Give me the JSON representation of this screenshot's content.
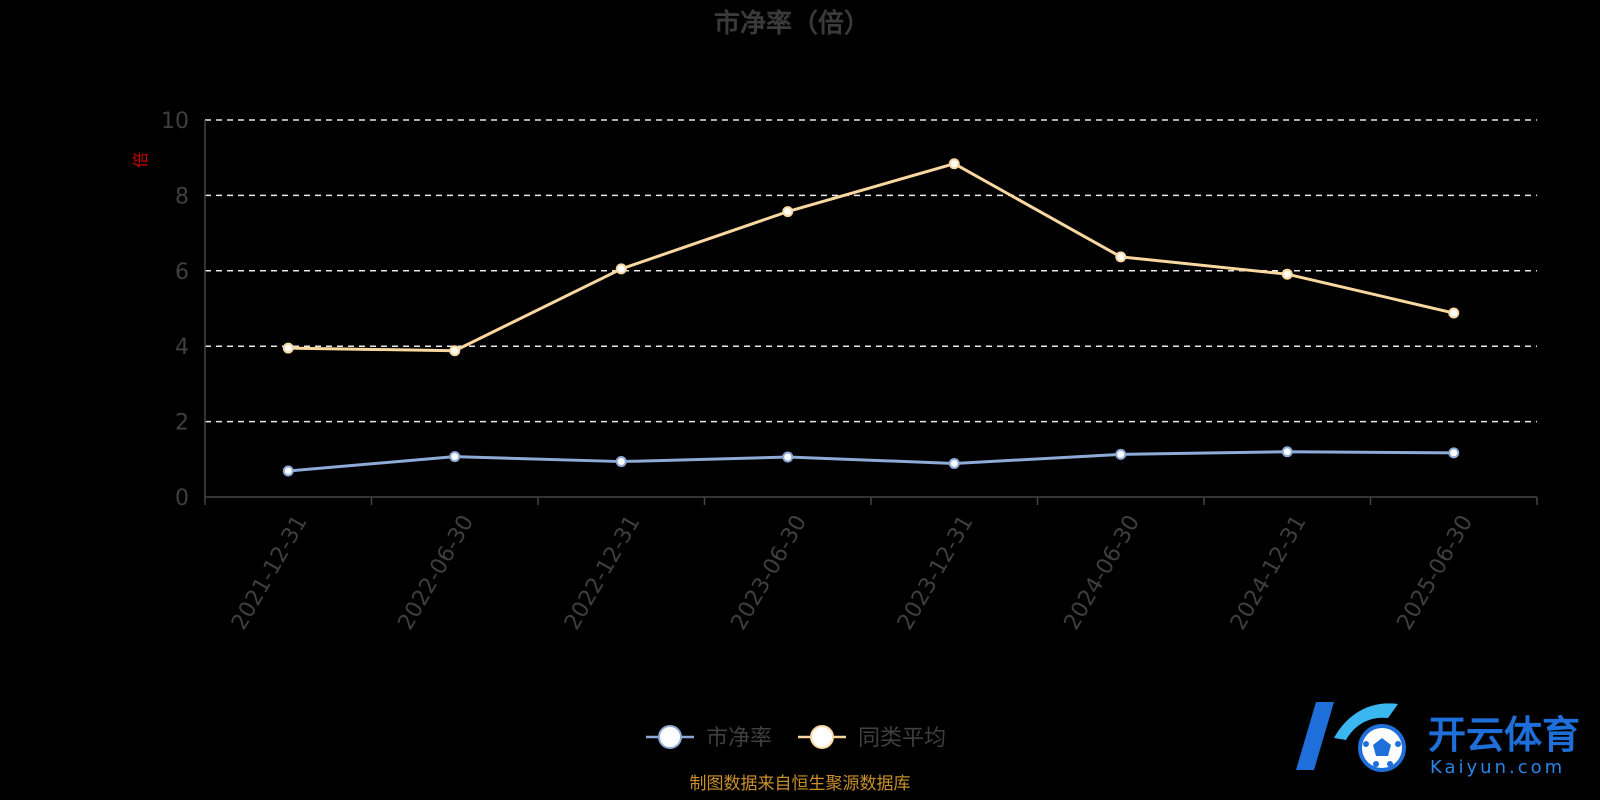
{
  "chart_data": {
    "type": "line",
    "title": "市净率（倍）",
    "ylabel": "倍",
    "xlabel": "",
    "ylim": [
      0,
      10
    ],
    "yticks": [
      0,
      2,
      4,
      6,
      8,
      10
    ],
    "grid": true,
    "legend_position": "bottom-center",
    "categories": [
      "2021-12-31",
      "2022-06-30",
      "2022-12-31",
      "2023-06-30",
      "2023-12-31",
      "2024-06-30",
      "2024-12-31",
      "2025-06-30"
    ],
    "series": [
      {
        "name": "市净率",
        "color": "#8eaad6",
        "values": [
          0.69,
          1.07,
          0.94,
          1.06,
          0.89,
          1.13,
          1.2,
          1.17
        ]
      },
      {
        "name": "同类平均",
        "color": "#f8d8a0",
        "values": [
          3.95,
          3.88,
          6.05,
          7.57,
          8.84,
          6.37,
          5.91,
          4.88
        ]
      }
    ]
  },
  "source_note": "制图数据来自恒生聚源数据库",
  "watermark": {
    "name_cn": "开云体育",
    "name_en": "Kaiyun.com",
    "colors": {
      "primary": "#1e6fd9",
      "accent": "#3ab6f0"
    }
  }
}
